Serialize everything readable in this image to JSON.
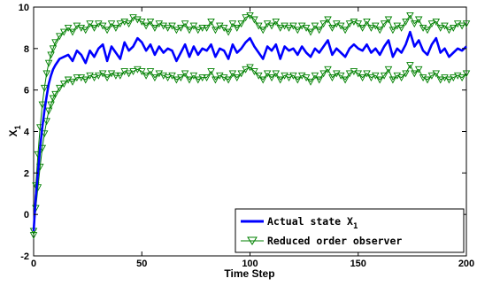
{
  "chart_data": {
    "type": "line",
    "xlabel": "Time Step",
    "ylabel": "X",
    "ylabel_subscript": "1",
    "xlim": [
      0,
      200
    ],
    "ylim": [
      -2,
      10
    ],
    "xticks": [
      "0",
      "50",
      "100",
      "150",
      "200"
    ],
    "yticks": [
      "-2",
      "0",
      "2",
      "4",
      "6",
      "8",
      "10"
    ],
    "grid": false,
    "legend_position": "bottom-right",
    "legend": [
      {
        "label": "Actual state X",
        "subscript": "1"
      },
      {
        "label": "Reduced order observer",
        "subscript": ""
      }
    ],
    "series": [
      {
        "name": "Actual state X1",
        "color": "#0000ff",
        "marker": "none",
        "x": [
          0,
          1,
          2,
          3,
          4,
          5,
          6,
          7,
          8,
          9,
          10,
          12,
          14,
          16,
          18,
          20,
          22,
          24,
          26,
          28,
          30,
          32,
          34,
          36,
          38,
          40,
          42,
          44,
          46,
          48,
          50,
          52,
          54,
          56,
          58,
          60,
          62,
          64,
          66,
          68,
          70,
          72,
          74,
          76,
          78,
          80,
          82,
          84,
          86,
          88,
          90,
          92,
          94,
          96,
          98,
          100,
          102,
          104,
          106,
          108,
          110,
          112,
          114,
          116,
          118,
          120,
          122,
          124,
          126,
          128,
          130,
          132,
          134,
          136,
          138,
          140,
          142,
          144,
          146,
          148,
          150,
          152,
          154,
          156,
          158,
          160,
          162,
          164,
          166,
          168,
          170,
          172,
          174,
          176,
          178,
          180,
          182,
          184,
          186,
          188,
          190,
          192,
          194,
          196,
          198,
          200
        ],
        "y": [
          -0.8,
          0.8,
          2.0,
          3.2,
          4.2,
          5.0,
          5.7,
          6.3,
          6.7,
          7.0,
          7.2,
          7.5,
          7.6,
          7.7,
          7.4,
          7.9,
          7.7,
          7.3,
          7.9,
          7.6,
          8.0,
          8.2,
          7.4,
          8.1,
          7.8,
          7.5,
          8.3,
          7.9,
          8.1,
          8.5,
          8.3,
          7.9,
          8.2,
          7.7,
          8.1,
          7.8,
          8.0,
          7.9,
          7.4,
          7.8,
          8.2,
          7.6,
          8.1,
          7.7,
          8.0,
          7.9,
          8.2,
          7.6,
          8.0,
          7.9,
          7.5,
          8.2,
          7.8,
          8.0,
          8.3,
          8.5,
          8.1,
          7.8,
          7.5,
          8.1,
          7.9,
          8.2,
          7.5,
          8.1,
          7.9,
          8.0,
          7.7,
          8.1,
          7.8,
          7.6,
          8.0,
          7.8,
          8.1,
          8.4,
          7.7,
          8.0,
          7.8,
          7.6,
          8.0,
          8.2,
          8.0,
          7.9,
          8.2,
          7.8,
          8.0,
          7.7,
          8.1,
          8.4,
          7.6,
          8.0,
          7.8,
          8.2,
          8.8,
          8.1,
          8.4,
          7.9,
          7.7,
          8.2,
          8.5,
          7.8,
          8.0,
          7.6,
          7.8,
          8.0,
          7.9,
          8.1
        ]
      },
      {
        "name": "Reduced order observer (upper)",
        "color": "#008000",
        "marker": "triangle-down",
        "x": [
          0,
          1,
          2,
          3,
          4,
          5,
          6,
          7,
          8,
          9,
          10,
          12,
          14,
          16,
          18,
          20,
          22,
          24,
          26,
          28,
          30,
          32,
          34,
          36,
          38,
          40,
          42,
          44,
          46,
          48,
          50,
          52,
          54,
          56,
          58,
          60,
          62,
          64,
          66,
          68,
          70,
          72,
          74,
          76,
          78,
          80,
          82,
          84,
          86,
          88,
          90,
          92,
          94,
          96,
          98,
          100,
          102,
          104,
          106,
          108,
          110,
          112,
          114,
          116,
          118,
          120,
          122,
          124,
          126,
          128,
          130,
          132,
          134,
          136,
          138,
          140,
          142,
          144,
          146,
          148,
          150,
          152,
          154,
          156,
          158,
          160,
          162,
          164,
          166,
          168,
          170,
          172,
          174,
          176,
          178,
          180,
          182,
          184,
          186,
          188,
          190,
          192,
          194,
          196,
          198,
          200
        ],
        "y": [
          -0.8,
          1.4,
          2.9,
          4.2,
          5.3,
          6.1,
          6.8,
          7.3,
          7.7,
          8.0,
          8.3,
          8.6,
          8.8,
          9.0,
          8.8,
          9.1,
          9.0,
          8.9,
          9.2,
          9.0,
          9.2,
          9.1,
          8.9,
          9.2,
          9.0,
          9.2,
          9.3,
          9.2,
          9.5,
          9.4,
          9.3,
          9.1,
          9.3,
          9.0,
          9.2,
          9.1,
          9.0,
          9.1,
          8.9,
          9.0,
          9.2,
          8.9,
          9.1,
          8.9,
          9.0,
          9.0,
          9.3,
          8.9,
          9.1,
          9.0,
          8.8,
          9.2,
          9.0,
          9.2,
          9.5,
          9.6,
          9.4,
          9.1,
          8.9,
          9.2,
          9.1,
          9.3,
          9.0,
          9.1,
          9.0,
          9.1,
          8.9,
          9.1,
          9.0,
          8.8,
          9.1,
          8.9,
          9.2,
          9.4,
          9.0,
          9.2,
          9.1,
          8.9,
          9.2,
          9.3,
          9.2,
          9.0,
          9.3,
          9.0,
          9.1,
          8.9,
          9.2,
          9.4,
          8.9,
          9.1,
          9.0,
          9.3,
          9.6,
          9.2,
          9.4,
          9.0,
          8.9,
          9.2,
          9.3,
          9.0,
          9.1,
          8.9,
          9.0,
          9.2,
          9.1,
          9.2
        ]
      },
      {
        "name": "Reduced order observer (lower)",
        "color": "#008000",
        "marker": "triangle-down",
        "x": [
          0,
          1,
          2,
          3,
          4,
          5,
          6,
          7,
          8,
          9,
          10,
          12,
          14,
          16,
          18,
          20,
          22,
          24,
          26,
          28,
          30,
          32,
          34,
          36,
          38,
          40,
          42,
          44,
          46,
          48,
          50,
          52,
          54,
          56,
          58,
          60,
          62,
          64,
          66,
          68,
          70,
          72,
          74,
          76,
          78,
          80,
          82,
          84,
          86,
          88,
          90,
          92,
          94,
          96,
          98,
          100,
          102,
          104,
          106,
          108,
          110,
          112,
          114,
          116,
          118,
          120,
          122,
          124,
          126,
          128,
          130,
          132,
          134,
          136,
          138,
          140,
          142,
          144,
          146,
          148,
          150,
          152,
          154,
          156,
          158,
          160,
          162,
          164,
          166,
          168,
          170,
          172,
          174,
          176,
          178,
          180,
          182,
          184,
          186,
          188,
          190,
          192,
          194,
          196,
          198,
          200
        ],
        "y": [
          -1.0,
          0.3,
          1.3,
          2.3,
          3.2,
          3.9,
          4.5,
          5.0,
          5.3,
          5.6,
          5.8,
          6.1,
          6.3,
          6.5,
          6.4,
          6.6,
          6.6,
          6.5,
          6.7,
          6.6,
          6.7,
          6.8,
          6.6,
          6.8,
          6.7,
          6.7,
          6.9,
          6.8,
          6.9,
          7.0,
          6.9,
          6.7,
          6.9,
          6.6,
          6.8,
          6.7,
          6.6,
          6.7,
          6.5,
          6.6,
          6.8,
          6.5,
          6.7,
          6.5,
          6.6,
          6.6,
          6.9,
          6.5,
          6.7,
          6.6,
          6.5,
          6.8,
          6.6,
          6.8,
          7.0,
          7.1,
          6.9,
          6.7,
          6.5,
          6.8,
          6.6,
          6.8,
          6.5,
          6.7,
          6.6,
          6.7,
          6.5,
          6.7,
          6.6,
          6.4,
          6.7,
          6.5,
          6.8,
          7.0,
          6.6,
          6.8,
          6.7,
          6.5,
          6.8,
          6.9,
          6.8,
          6.6,
          6.8,
          6.6,
          6.7,
          6.5,
          6.7,
          7.0,
          6.5,
          6.7,
          6.6,
          6.8,
          7.2,
          6.8,
          7.0,
          6.6,
          6.5,
          6.7,
          6.8,
          6.5,
          6.6,
          6.5,
          6.6,
          6.7,
          6.6,
          6.8
        ]
      }
    ]
  }
}
